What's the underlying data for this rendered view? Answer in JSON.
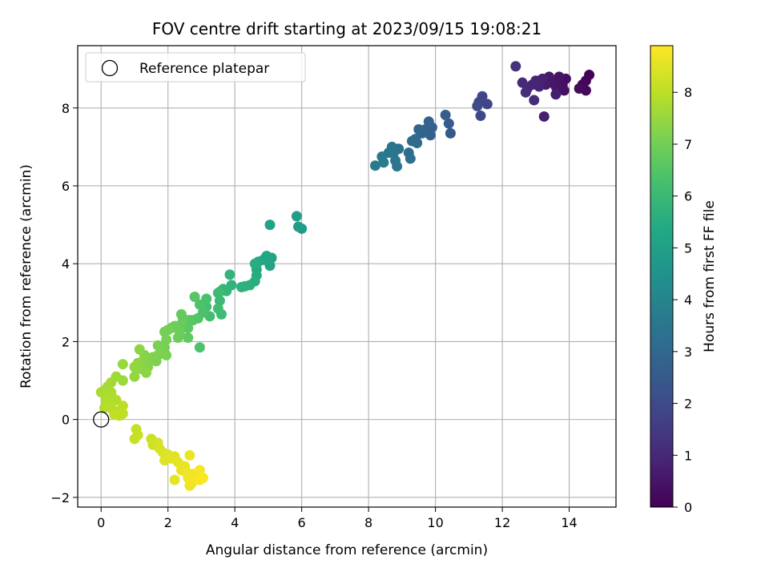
{
  "chart_data": {
    "type": "scatter",
    "title": "FOV centre drift starting at 2023/09/15 19:08:21",
    "xlabel": "Angular distance from reference (arcmin)",
    "ylabel": "Rotation from reference (arcmin)",
    "xlim": [
      -0.7,
      15.4
    ],
    "ylim": [
      -2.25,
      9.6
    ],
    "xticks": [
      0,
      2,
      4,
      6,
      8,
      10,
      12,
      14
    ],
    "yticks": [
      -2,
      0,
      2,
      4,
      6,
      8
    ],
    "grid": true,
    "legend": {
      "placement": "top-left",
      "entries": [
        "Reference platepar"
      ]
    },
    "reference_point": {
      "name": "Reference platepar",
      "x": 0,
      "y": 0
    },
    "colorbar": {
      "label": "Hours from first FF file",
      "colormap": "viridis",
      "range": [
        0,
        8.9
      ],
      "ticks": [
        0,
        1,
        2,
        3,
        4,
        5,
        6,
        7,
        8
      ]
    },
    "series": [
      {
        "points": [
          {
            "x": 14.6,
            "y": 8.85,
            "hours": 0.05
          },
          {
            "x": 14.5,
            "y": 8.7,
            "hours": 0.1
          },
          {
            "x": 14.4,
            "y": 8.6,
            "hours": 0.15
          },
          {
            "x": 14.5,
            "y": 8.45,
            "hours": 0.2
          },
          {
            "x": 14.3,
            "y": 8.5,
            "hours": 0.25
          },
          {
            "x": 13.9,
            "y": 8.75,
            "hours": 0.3
          },
          {
            "x": 13.8,
            "y": 8.6,
            "hours": 0.35
          },
          {
            "x": 13.85,
            "y": 8.45,
            "hours": 0.4
          },
          {
            "x": 13.7,
            "y": 8.8,
            "hours": 0.45
          },
          {
            "x": 13.6,
            "y": 8.55,
            "hours": 0.5
          },
          {
            "x": 13.5,
            "y": 8.65,
            "hours": 0.55
          },
          {
            "x": 13.4,
            "y": 8.8,
            "hours": 0.6
          },
          {
            "x": 13.3,
            "y": 8.6,
            "hours": 0.65
          },
          {
            "x": 13.6,
            "y": 8.35,
            "hours": 0.7
          },
          {
            "x": 13.25,
            "y": 7.78,
            "hours": 0.75
          },
          {
            "x": 13.2,
            "y": 8.75,
            "hours": 0.8
          },
          {
            "x": 13.1,
            "y": 8.55,
            "hours": 0.85
          },
          {
            "x": 13.0,
            "y": 8.7,
            "hours": 0.9
          },
          {
            "x": 12.9,
            "y": 8.6,
            "hours": 0.95
          },
          {
            "x": 12.75,
            "y": 8.5,
            "hours": 1.0
          },
          {
            "x": 12.6,
            "y": 8.65,
            "hours": 1.05
          },
          {
            "x": 12.95,
            "y": 8.2,
            "hours": 1.1
          },
          {
            "x": 12.7,
            "y": 8.4,
            "hours": 1.15
          },
          {
            "x": 12.4,
            "y": 9.07,
            "hours": 1.25
          },
          {
            "x": 11.55,
            "y": 8.1,
            "hours": 1.8
          },
          {
            "x": 11.4,
            "y": 8.3,
            "hours": 1.85
          },
          {
            "x": 11.3,
            "y": 8.15,
            "hours": 1.9
          },
          {
            "x": 11.35,
            "y": 7.8,
            "hours": 1.95
          },
          {
            "x": 11.25,
            "y": 8.05,
            "hours": 2.0
          },
          {
            "x": 10.45,
            "y": 7.35,
            "hours": 2.5
          },
          {
            "x": 10.4,
            "y": 7.6,
            "hours": 2.55
          },
          {
            "x": 10.3,
            "y": 7.82,
            "hours": 2.6
          },
          {
            "x": 9.85,
            "y": 7.3,
            "hours": 2.7
          },
          {
            "x": 9.9,
            "y": 7.5,
            "hours": 2.75
          },
          {
            "x": 9.8,
            "y": 7.65,
            "hours": 2.8
          },
          {
            "x": 9.7,
            "y": 7.45,
            "hours": 2.85
          },
          {
            "x": 9.6,
            "y": 7.35,
            "hours": 2.9
          },
          {
            "x": 9.5,
            "y": 7.45,
            "hours": 2.95
          },
          {
            "x": 9.4,
            "y": 7.2,
            "hours": 3.0
          },
          {
            "x": 9.45,
            "y": 7.1,
            "hours": 3.05
          },
          {
            "x": 9.3,
            "y": 7.15,
            "hours": 3.1
          },
          {
            "x": 9.2,
            "y": 6.85,
            "hours": 3.15
          },
          {
            "x": 9.25,
            "y": 6.7,
            "hours": 3.2
          },
          {
            "x": 8.9,
            "y": 6.95,
            "hours": 3.3
          },
          {
            "x": 8.75,
            "y": 6.85,
            "hours": 3.35
          },
          {
            "x": 8.7,
            "y": 7.0,
            "hours": 3.4
          },
          {
            "x": 8.8,
            "y": 6.65,
            "hours": 3.45
          },
          {
            "x": 8.85,
            "y": 6.5,
            "hours": 3.5
          },
          {
            "x": 8.6,
            "y": 6.85,
            "hours": 3.55
          },
          {
            "x": 8.4,
            "y": 6.75,
            "hours": 3.6
          },
          {
            "x": 8.45,
            "y": 6.6,
            "hours": 3.65
          },
          {
            "x": 8.2,
            "y": 6.52,
            "hours": 3.7
          },
          {
            "x": 6.0,
            "y": 4.9,
            "hours": 4.85
          },
          {
            "x": 5.9,
            "y": 4.95,
            "hours": 4.9
          },
          {
            "x": 5.85,
            "y": 5.22,
            "hours": 4.95
          },
          {
            "x": 5.05,
            "y": 5.0,
            "hours": 5.1
          },
          {
            "x": 5.1,
            "y": 4.15,
            "hours": 5.15
          },
          {
            "x": 5.05,
            "y": 3.95,
            "hours": 5.2
          },
          {
            "x": 4.95,
            "y": 4.2,
            "hours": 5.25
          },
          {
            "x": 4.85,
            "y": 4.1,
            "hours": 5.3
          },
          {
            "x": 4.7,
            "y": 4.05,
            "hours": 5.35
          },
          {
            "x": 4.65,
            "y": 3.85,
            "hours": 5.4
          },
          {
            "x": 4.65,
            "y": 3.7,
            "hours": 5.45
          },
          {
            "x": 4.6,
            "y": 4.0,
            "hours": 5.5
          },
          {
            "x": 4.6,
            "y": 3.55,
            "hours": 5.55
          },
          {
            "x": 4.45,
            "y": 3.45,
            "hours": 5.6
          },
          {
            "x": 4.3,
            "y": 3.42,
            "hours": 5.65
          },
          {
            "x": 4.2,
            "y": 3.4,
            "hours": 5.7
          },
          {
            "x": 3.9,
            "y": 3.45,
            "hours": 5.75
          },
          {
            "x": 3.85,
            "y": 3.72,
            "hours": 5.8
          },
          {
            "x": 3.75,
            "y": 3.3,
            "hours": 5.85
          },
          {
            "x": 3.65,
            "y": 3.35,
            "hours": 5.9
          },
          {
            "x": 3.55,
            "y": 3.28,
            "hours": 5.95
          },
          {
            "x": 3.55,
            "y": 3.05,
            "hours": 6.0
          },
          {
            "x": 3.5,
            "y": 3.25,
            "hours": 6.05
          },
          {
            "x": 3.6,
            "y": 2.7,
            "hours": 6.1
          },
          {
            "x": 3.5,
            "y": 2.85,
            "hours": 6.15
          },
          {
            "x": 3.25,
            "y": 2.65,
            "hours": 6.2
          },
          {
            "x": 3.15,
            "y": 2.9,
            "hours": 6.25
          },
          {
            "x": 3.15,
            "y": 3.1,
            "hours": 6.3
          },
          {
            "x": 3.05,
            "y": 2.75,
            "hours": 6.35
          },
          {
            "x": 2.95,
            "y": 2.95,
            "hours": 6.4
          },
          {
            "x": 2.9,
            "y": 2.6,
            "hours": 6.45
          },
          {
            "x": 2.75,
            "y": 2.55,
            "hours": 6.5
          },
          {
            "x": 2.8,
            "y": 3.15,
            "hours": 6.55
          },
          {
            "x": 2.65,
            "y": 2.55,
            "hours": 6.6
          },
          {
            "x": 2.6,
            "y": 2.35,
            "hours": 6.65
          },
          {
            "x": 2.6,
            "y": 2.1,
            "hours": 6.7
          },
          {
            "x": 2.45,
            "y": 2.6,
            "hours": 6.75
          },
          {
            "x": 2.4,
            "y": 2.7,
            "hours": 6.75
          },
          {
            "x": 2.4,
            "y": 2.45,
            "hours": 6.8
          },
          {
            "x": 2.35,
            "y": 2.25,
            "hours": 6.85
          },
          {
            "x": 2.3,
            "y": 2.1,
            "hours": 6.9
          },
          {
            "x": 2.2,
            "y": 2.4,
            "hours": 6.9
          },
          {
            "x": 2.1,
            "y": 2.35,
            "hours": 6.95
          },
          {
            "x": 2.0,
            "y": 2.3,
            "hours": 7.0
          },
          {
            "x": 1.9,
            "y": 2.25,
            "hours": 7.0
          },
          {
            "x": 1.95,
            "y": 2.05,
            "hours": 7.05
          },
          {
            "x": 1.9,
            "y": 1.85,
            "hours": 7.05
          },
          {
            "x": 1.95,
            "y": 1.65,
            "hours": 7.1
          },
          {
            "x": 1.7,
            "y": 1.9,
            "hours": 7.1
          },
          {
            "x": 1.7,
            "y": 1.65,
            "hours": 7.15
          },
          {
            "x": 1.65,
            "y": 1.5,
            "hours": 7.15
          },
          {
            "x": 1.55,
            "y": 1.6,
            "hours": 7.2
          },
          {
            "x": 1.4,
            "y": 1.55,
            "hours": 7.2
          },
          {
            "x": 1.4,
            "y": 1.35,
            "hours": 7.25
          },
          {
            "x": 1.3,
            "y": 1.65,
            "hours": 7.25
          },
          {
            "x": 1.25,
            "y": 1.5,
            "hours": 7.3
          },
          {
            "x": 1.2,
            "y": 1.3,
            "hours": 7.3
          },
          {
            "x": 1.35,
            "y": 1.2,
            "hours": 7.35
          },
          {
            "x": 1.15,
            "y": 1.8,
            "hours": 7.35
          },
          {
            "x": 1.1,
            "y": 1.45,
            "hours": 7.4
          },
          {
            "x": 1.05,
            "y": 1.3,
            "hours": 7.4
          },
          {
            "x": 1.0,
            "y": 1.35,
            "hours": 7.45
          },
          {
            "x": 1.0,
            "y": 1.1,
            "hours": 7.45
          },
          {
            "x": 2.95,
            "y": 1.85,
            "hours": 6.4
          },
          {
            "x": 0.65,
            "y": 1.42,
            "hours": 7.5
          },
          {
            "x": 0.65,
            "y": 1.0,
            "hours": 7.55
          },
          {
            "x": 0.45,
            "y": 1.1,
            "hours": 7.6
          },
          {
            "x": 0.3,
            "y": 0.95,
            "hours": 7.65
          },
          {
            "x": 0.2,
            "y": 0.85,
            "hours": 7.7
          },
          {
            "x": 0.1,
            "y": 0.75,
            "hours": 7.7
          },
          {
            "x": 0.0,
            "y": 0.7,
            "hours": 7.75
          },
          {
            "x": 0.15,
            "y": 0.6,
            "hours": 7.75
          },
          {
            "x": 0.3,
            "y": 0.7,
            "hours": 7.8
          },
          {
            "x": 0.35,
            "y": 0.55,
            "hours": 7.8
          },
          {
            "x": 0.15,
            "y": 0.45,
            "hours": 7.85
          },
          {
            "x": 0.45,
            "y": 0.5,
            "hours": 7.85
          },
          {
            "x": 0.25,
            "y": 0.35,
            "hours": 7.9
          },
          {
            "x": 0.1,
            "y": 0.3,
            "hours": 7.9
          },
          {
            "x": 0.35,
            "y": 0.25,
            "hours": 7.95
          },
          {
            "x": 0.5,
            "y": 0.2,
            "hours": 7.95
          },
          {
            "x": 0.65,
            "y": 0.35,
            "hours": 8.0
          },
          {
            "x": 0.55,
            "y": 0.1,
            "hours": 8.0
          },
          {
            "x": 0.4,
            "y": 0.12,
            "hours": 8.05
          },
          {
            "x": 0.65,
            "y": 0.15,
            "hours": 8.05
          },
          {
            "x": 1.05,
            "y": -0.25,
            "hours": 8.1
          },
          {
            "x": 1.1,
            "y": -0.4,
            "hours": 8.15
          },
          {
            "x": 1.0,
            "y": -0.5,
            "hours": 8.15
          },
          {
            "x": 1.5,
            "y": -0.5,
            "hours": 8.2
          },
          {
            "x": 1.55,
            "y": -0.65,
            "hours": 8.25
          },
          {
            "x": 1.7,
            "y": -0.6,
            "hours": 8.3
          },
          {
            "x": 1.75,
            "y": -0.75,
            "hours": 8.35
          },
          {
            "x": 1.85,
            "y": -0.85,
            "hours": 8.4
          },
          {
            "x": 1.9,
            "y": -1.05,
            "hours": 8.45
          },
          {
            "x": 2.0,
            "y": -0.9,
            "hours": 8.45
          },
          {
            "x": 2.1,
            "y": -1.0,
            "hours": 8.5
          },
          {
            "x": 2.2,
            "y": -0.95,
            "hours": 8.5
          },
          {
            "x": 2.3,
            "y": -1.1,
            "hours": 8.55
          },
          {
            "x": 2.4,
            "y": -1.3,
            "hours": 8.6
          },
          {
            "x": 2.5,
            "y": -1.2,
            "hours": 8.6
          },
          {
            "x": 2.55,
            "y": -1.35,
            "hours": 8.65
          },
          {
            "x": 2.65,
            "y": -0.92,
            "hours": 8.65
          },
          {
            "x": 2.6,
            "y": -1.5,
            "hours": 8.7
          },
          {
            "x": 2.75,
            "y": -1.4,
            "hours": 8.7
          },
          {
            "x": 2.8,
            "y": -1.55,
            "hours": 8.75
          },
          {
            "x": 2.7,
            "y": -1.65,
            "hours": 8.75
          },
          {
            "x": 2.95,
            "y": -1.3,
            "hours": 8.8
          },
          {
            "x": 2.95,
            "y": -1.55,
            "hours": 8.8
          },
          {
            "x": 3.05,
            "y": -1.5,
            "hours": 8.85
          },
          {
            "x": 2.2,
            "y": -1.55,
            "hours": 8.55
          },
          {
            "x": 2.65,
            "y": -1.7,
            "hours": 8.7
          }
        ]
      }
    ]
  }
}
